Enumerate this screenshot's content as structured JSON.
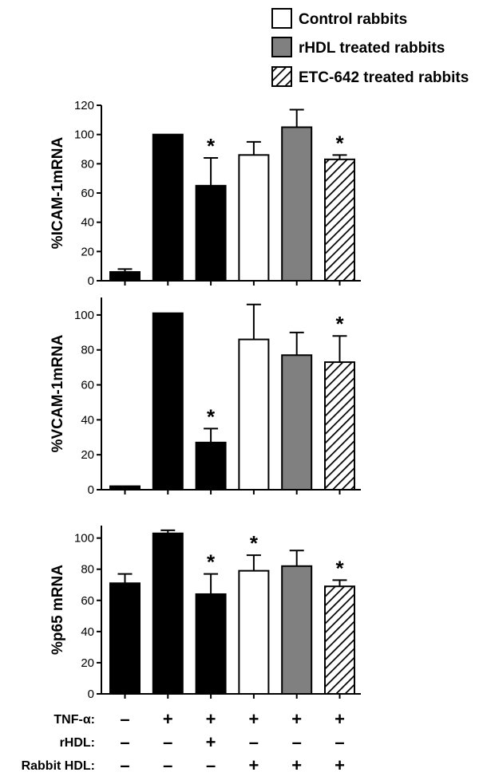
{
  "legend": [
    {
      "label": "Control rabbits",
      "pattern": "white"
    },
    {
      "label": "rHDL treated rabbits",
      "pattern": "gray"
    },
    {
      "label": "ETC-642 treated rabbits",
      "pattern": "hatch"
    }
  ],
  "colors": {
    "black": "#000000",
    "white": "#ffffff",
    "gray": "#808080",
    "hatch_line": "#000000"
  },
  "conditions": {
    "rows": [
      {
        "label": "TNF-α:",
        "values": [
          "–",
          "+",
          "+",
          "+",
          "+",
          "+"
        ]
      },
      {
        "label": "rHDL:",
        "values": [
          "–",
          "–",
          "+",
          "–",
          "–",
          "–"
        ]
      },
      {
        "label": "Rabbit HDL:",
        "values": [
          "–",
          "–",
          "–",
          "+",
          "+",
          "+"
        ]
      }
    ]
  },
  "chart_data": [
    {
      "type": "bar",
      "ylabel": "%ICAM-1mRNA",
      "ylim": [
        0,
        120
      ],
      "yticks": [
        0,
        20,
        40,
        60,
        80,
        100,
        120
      ],
      "values": [
        6,
        100,
        65,
        86,
        105,
        83
      ],
      "errors": [
        2,
        0,
        19,
        9,
        12,
        3
      ],
      "patterns": [
        "black",
        "black",
        "black",
        "white",
        "gray",
        "hatch"
      ],
      "significant": [
        "",
        "",
        "*",
        "",
        "",
        "*"
      ]
    },
    {
      "type": "bar",
      "ylabel": "%VCAM-1mRNA",
      "ylim": [
        0,
        110
      ],
      "yticks": [
        0,
        20,
        40,
        60,
        80,
        100
      ],
      "values": [
        2,
        101,
        27,
        86,
        77,
        73
      ],
      "errors": [
        0,
        0,
        8,
        20,
        13,
        15
      ],
      "patterns": [
        "black",
        "black",
        "black",
        "white",
        "gray",
        "hatch"
      ],
      "significant": [
        "",
        "",
        "*",
        "",
        "",
        "*"
      ]
    },
    {
      "type": "bar",
      "ylabel": "%p65 mRNA",
      "ylim": [
        0,
        108
      ],
      "yticks": [
        0,
        20,
        40,
        60,
        80,
        100
      ],
      "values": [
        71,
        103,
        64,
        79,
        82,
        69
      ],
      "errors": [
        6,
        2,
        13,
        10,
        10,
        4
      ],
      "patterns": [
        "black",
        "black",
        "black",
        "white",
        "gray",
        "hatch"
      ],
      "significant": [
        "",
        "",
        "*",
        "*",
        "",
        "*"
      ]
    }
  ]
}
